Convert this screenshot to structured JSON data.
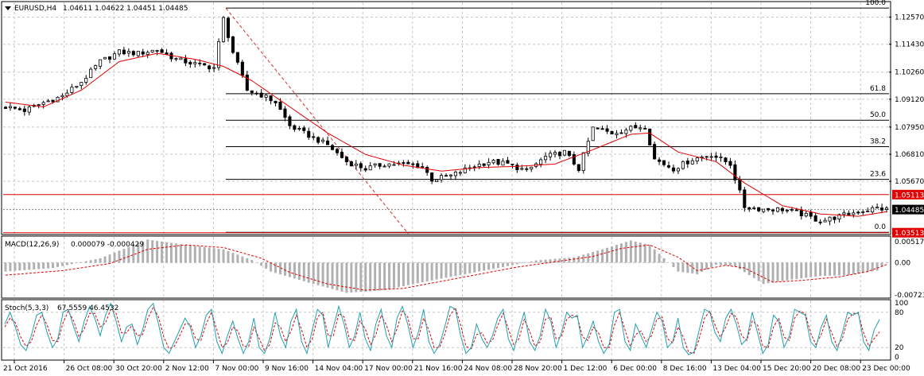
{
  "header": {
    "symbol": "EURUSD,H4",
    "ohlc": "1.04611 1.04622 1.04451 1.04485"
  },
  "colors": {
    "background": "#ffffff",
    "grid": "#c6c6c6",
    "candle": "#000000",
    "ma": "#e00000",
    "hline": "#e00000",
    "fib": "#000000",
    "trend": "#d03030",
    "macd_hist": "#b0b0b0",
    "macd_signal": "#e00000",
    "stoch_main": "#20a0b0",
    "stoch_signal": "#e00000",
    "price_tag": "#000000",
    "red_tag": "#e00000"
  },
  "chart_data": [
    {
      "type": "candlestick",
      "title": "EURUSD,H4",
      "ylim": [
        1.0347,
        1.1319
      ],
      "price_ticks": [
        "1.12570",
        "1.11430",
        "1.10260",
        "1.09120",
        "1.07950",
        "1.06810",
        "1.05670"
      ],
      "price_tick_values": [
        1.1257,
        1.1143,
        1.1026,
        1.0912,
        1.0795,
        1.0681,
        1.0567
      ],
      "x_labels": [
        "21 Oct 2016",
        "26 Oct 08:00",
        "30 Oct 20:00",
        "2 Nov 12:00",
        "7 Nov 00:00",
        "9 Nov 16:00",
        "14 Nov 04:00",
        "17 Nov 00:00",
        "21 Nov 16:00",
        "24 Nov 08:00",
        "28 Nov 20:00",
        "1 Dec 12:00",
        "6 Dec 00:00",
        "8 Dec 16:00",
        "13 Dec 04:00",
        "15 Dec 20:00",
        "20 Dec 08:00",
        "23 Dec 00:00"
      ],
      "current_price": 1.04485,
      "current_price_label": "1.04485",
      "horizontal_lines": [
        {
          "value": 1.05113,
          "label": "1.05113"
        },
        {
          "value": 1.03513,
          "label": "1.03513"
        }
      ],
      "fibonacci": {
        "high": 1.1295,
        "low": 1.0353,
        "levels": [
          {
            "ratio": 1.0,
            "label": "100.0"
          },
          {
            "ratio": 0.618,
            "label": "61.8"
          },
          {
            "ratio": 0.5,
            "label": "50.0"
          },
          {
            "ratio": 0.382,
            "label": "38.2"
          },
          {
            "ratio": 0.236,
            "label": "23.6"
          },
          {
            "ratio": 0.0,
            "label": "0.0"
          }
        ]
      },
      "close_path": [
        [
          0,
          1.088
        ],
        [
          4,
          1.0865
        ],
        [
          8,
          1.0898
        ],
        [
          12,
          1.0925
        ],
        [
          16,
          1.0985
        ],
        [
          20,
          1.107
        ],
        [
          24,
          1.111
        ],
        [
          28,
          1.1105
        ],
        [
          32,
          1.112
        ],
        [
          36,
          1.108
        ],
        [
          40,
          1.106
        ],
        [
          44,
          1.1045
        ],
        [
          46,
          1.125
        ],
        [
          48,
          1.111
        ],
        [
          51,
          1.095
        ],
        [
          54,
          1.093
        ],
        [
          57,
          1.09
        ],
        [
          60,
          1.08
        ],
        [
          64,
          1.076
        ],
        [
          68,
          1.072
        ],
        [
          72,
          1.065
        ],
        [
          76,
          1.062
        ],
        [
          80,
          1.064
        ],
        [
          84,
          1.064
        ],
        [
          88,
          1.063
        ],
        [
          90,
          1.0575
        ],
        [
          94,
          1.059
        ],
        [
          98,
          1.0625
        ],
        [
          102,
          1.065
        ],
        [
          106,
          1.064
        ],
        [
          110,
          1.061
        ],
        [
          114,
          1.067
        ],
        [
          118,
          1.069
        ],
        [
          121,
          1.062
        ],
        [
          124,
          1.079
        ],
        [
          128,
          1.077
        ],
        [
          132,
          1.079
        ],
        [
          135,
          1.08
        ],
        [
          137,
          1.066
        ],
        [
          141,
          1.062
        ],
        [
          145,
          1.066
        ],
        [
          149,
          1.068
        ],
        [
          153,
          1.064
        ],
        [
          156,
          1.046
        ],
        [
          160,
          1.045
        ],
        [
          164,
          1.045
        ],
        [
          168,
          1.043
        ],
        [
          172,
          1.04
        ],
        [
          176,
          1.042
        ],
        [
          180,
          1.044
        ],
        [
          184,
          1.0455
        ],
        [
          186,
          1.04485
        ]
      ],
      "ma_path": [
        [
          0,
          1.09
        ],
        [
          8,
          1.088
        ],
        [
          16,
          1.095
        ],
        [
          24,
          1.107
        ],
        [
          32,
          1.1105
        ],
        [
          40,
          1.108
        ],
        [
          46,
          1.105
        ],
        [
          52,
          1.099
        ],
        [
          60,
          1.088
        ],
        [
          68,
          1.077
        ],
        [
          76,
          1.068
        ],
        [
          84,
          1.0635
        ],
        [
          92,
          1.061
        ],
        [
          100,
          1.0625
        ],
        [
          108,
          1.063
        ],
        [
          116,
          1.064
        ],
        [
          124,
          1.07
        ],
        [
          132,
          1.0765
        ],
        [
          136,
          1.077
        ],
        [
          142,
          1.069
        ],
        [
          150,
          1.065
        ],
        [
          156,
          1.056
        ],
        [
          164,
          1.0465
        ],
        [
          172,
          1.043
        ],
        [
          180,
          1.042
        ],
        [
          186,
          1.044
        ]
      ]
    },
    {
      "type": "histogram",
      "title": "MACD(12,26,9)",
      "values_text": "0.000079 -0.000429",
      "ylim": [
        -0.0078,
        0.0058
      ],
      "ticks": [
        "0.005177",
        "0.00",
        "-0.007232"
      ],
      "tick_values": [
        0.005177,
        0.0,
        -0.007232
      ],
      "main_path": [
        [
          0,
          -0.002
        ],
        [
          10,
          -0.0012
        ],
        [
          20,
          0.001
        ],
        [
          30,
          0.0052
        ],
        [
          38,
          0.004
        ],
        [
          46,
          0.003
        ],
        [
          52,
          0.0006
        ],
        [
          56,
          -0.002
        ],
        [
          64,
          -0.0045
        ],
        [
          72,
          -0.0068
        ],
        [
          80,
          -0.0062
        ],
        [
          88,
          -0.0044
        ],
        [
          96,
          -0.0028
        ],
        [
          104,
          -0.0012
        ],
        [
          112,
          0.0005
        ],
        [
          120,
          0.0012
        ],
        [
          126,
          0.003
        ],
        [
          132,
          0.005
        ],
        [
          136,
          0.004
        ],
        [
          142,
          -0.002
        ],
        [
          146,
          -0.0026
        ],
        [
          150,
          -0.0005
        ],
        [
          154,
          -0.0008
        ],
        [
          160,
          -0.0048
        ],
        [
          166,
          -0.0038
        ],
        [
          172,
          -0.003
        ],
        [
          178,
          -0.0028
        ],
        [
          184,
          -0.0018
        ],
        [
          186,
          7.9e-05
        ]
      ],
      "signal_path": [
        [
          0,
          -0.0028
        ],
        [
          12,
          -0.0018
        ],
        [
          22,
          -0.0002
        ],
        [
          30,
          0.003
        ],
        [
          38,
          0.004
        ],
        [
          46,
          0.0034
        ],
        [
          54,
          0.001
        ],
        [
          60,
          -0.0022
        ],
        [
          68,
          -0.0048
        ],
        [
          76,
          -0.0062
        ],
        [
          84,
          -0.0058
        ],
        [
          92,
          -0.0042
        ],
        [
          100,
          -0.0026
        ],
        [
          108,
          -0.001
        ],
        [
          116,
          0.0002
        ],
        [
          124,
          0.0014
        ],
        [
          130,
          0.0032
        ],
        [
          136,
          0.004
        ],
        [
          142,
          0.0012
        ],
        [
          146,
          -0.0018
        ],
        [
          152,
          -0.0006
        ],
        [
          156,
          -0.0012
        ],
        [
          162,
          -0.0044
        ],
        [
          168,
          -0.004
        ],
        [
          176,
          -0.0032
        ],
        [
          182,
          -0.002
        ],
        [
          186,
          -0.000429
        ]
      ]
    },
    {
      "type": "line",
      "title": "Stoch(5,3,3)",
      "values_text": "67.5559 46.4532",
      "ylim": [
        0,
        100
      ],
      "ticks": [
        "100",
        "80",
        "20",
        "0"
      ],
      "tick_values": [
        100,
        80,
        20,
        0
      ],
      "main_values": [
        60,
        80,
        55,
        25,
        15,
        40,
        75,
        80,
        45,
        20,
        35,
        80,
        85,
        55,
        30,
        65,
        90,
        70,
        40,
        75,
        95,
        65,
        30,
        55,
        60,
        25,
        50,
        85,
        95,
        60,
        20,
        10,
        30,
        50,
        70,
        55,
        20,
        40,
        75,
        85,
        30,
        10,
        40,
        65,
        35,
        10,
        30,
        70,
        20,
        10,
        35,
        80,
        40,
        20,
        65,
        85,
        30,
        10,
        50,
        85,
        75,
        20,
        55,
        90,
        60,
        20,
        40,
        80,
        35,
        15,
        60,
        85,
        40,
        20,
        70,
        90,
        60,
        20,
        45,
        85,
        30,
        10,
        25,
        55,
        90,
        85,
        40,
        10,
        20,
        60,
        35,
        20,
        40,
        70,
        85,
        35,
        15,
        50,
        80,
        30,
        15,
        40,
        85,
        65,
        20,
        45,
        80,
        70,
        75,
        20,
        40,
        65,
        30,
        10,
        25,
        80,
        85,
        30,
        15,
        60,
        40,
        20,
        50,
        80,
        65,
        20,
        30,
        70,
        20,
        8,
        12,
        50,
        85,
        80,
        45,
        30,
        70,
        85,
        60,
        25,
        35,
        80,
        45,
        10,
        25,
        75,
        65,
        20,
        40,
        85,
        80,
        75,
        30,
        20,
        55,
        75,
        30,
        15,
        45,
        80,
        75,
        80,
        30,
        15,
        50,
        67.5559
      ],
      "signal_values": [
        55,
        70,
        62,
        38,
        22,
        30,
        58,
        76,
        58,
        32,
        30,
        62,
        82,
        65,
        38,
        52,
        78,
        78,
        55,
        62,
        85,
        78,
        45,
        45,
        58,
        40,
        42,
        70,
        88,
        72,
        38,
        18,
        22,
        40,
        60,
        60,
        35,
        32,
        60,
        80,
        50,
        20,
        28,
        55,
        48,
        22,
        22,
        55,
        35,
        15,
        25,
        62,
        55,
        30,
        48,
        75,
        50,
        20,
        35,
        72,
        80,
        40,
        40,
        78,
        72,
        35,
        32,
        65,
        52,
        25,
        42,
        75,
        58,
        30,
        52,
        82,
        72,
        35,
        35,
        70,
        50,
        20,
        20,
        42,
        75,
        88,
        58,
        22,
        18,
        42,
        45,
        28,
        32,
        58,
        78,
        52,
        25,
        35,
        68,
        48,
        22,
        30,
        68,
        72,
        35,
        38,
        68,
        75,
        72,
        38,
        32,
        55,
        45,
        20,
        20,
        58,
        80,
        50,
        22,
        42,
        48,
        30,
        40,
        68,
        72,
        35,
        28,
        55,
        38,
        12,
        10,
        35,
        70,
        82,
        58,
        38,
        55,
        78,
        72,
        40,
        32,
        65,
        58,
        22,
        20,
        55,
        70,
        38,
        32,
        70,
        82,
        78,
        45,
        25,
        42,
        68,
        45,
        22,
        35,
        68,
        78,
        78,
        45,
        22,
        35,
        46.4532
      ]
    }
  ]
}
